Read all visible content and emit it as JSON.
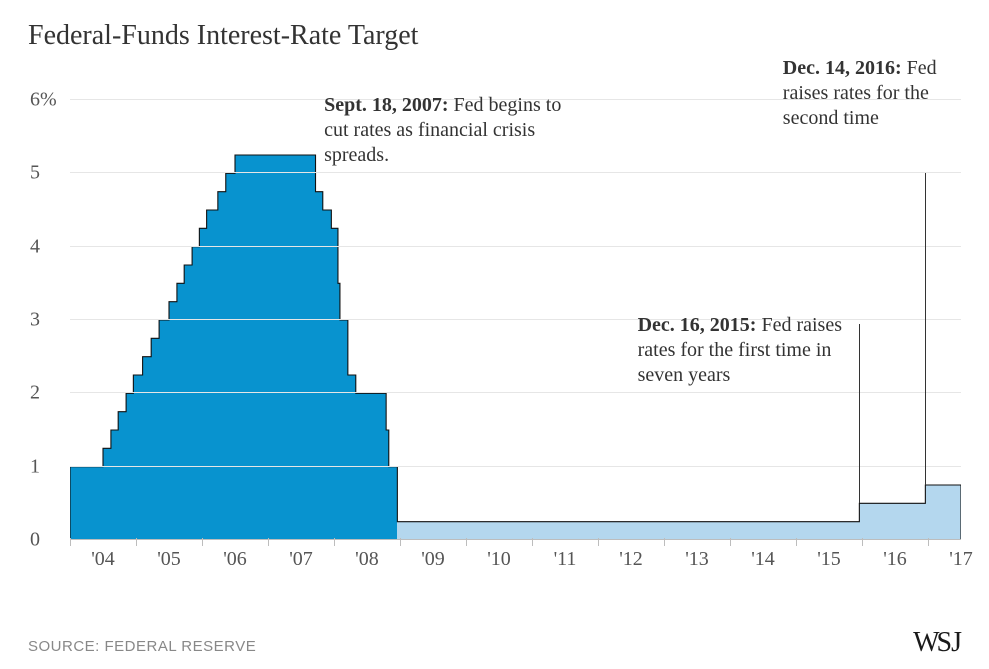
{
  "title": "Federal-Funds Interest-Rate Target",
  "source": "SOURCE: FEDERAL RESERVE",
  "logo": "WSJ",
  "chart": {
    "type": "step-area",
    "ylim": [
      0,
      6
    ],
    "ytick_step": 1,
    "ytick_labels": [
      "0",
      "1",
      "2",
      "3",
      "4",
      "5",
      "6%"
    ],
    "x_start_year": 2004,
    "x_end_year": 2017.5,
    "xtick_labels": [
      "'04",
      "'05",
      "'06",
      "'07",
      "'08",
      "'09",
      "'10",
      "'11",
      "'12",
      "'13",
      "'14",
      "'15",
      "'16",
      "'17"
    ],
    "background_color": "#ffffff",
    "grid_color": "#e6e6e6",
    "axis_color": "#bdbdbd",
    "series_dark": "#0893cf",
    "series_light": "#b4d7ee",
    "outline_color": "#111111",
    "label_fontsize": 20,
    "title_fontsize": 28,
    "segments": [
      {
        "from": 2004.0,
        "to": 2004.5,
        "rate": 1.0,
        "fill": "dark"
      },
      {
        "from": 2004.5,
        "to": 2004.62,
        "rate": 1.25,
        "fill": "dark"
      },
      {
        "from": 2004.62,
        "to": 2004.73,
        "rate": 1.5,
        "fill": "dark"
      },
      {
        "from": 2004.73,
        "to": 2004.85,
        "rate": 1.75,
        "fill": "dark"
      },
      {
        "from": 2004.85,
        "to": 2004.96,
        "rate": 2.0,
        "fill": "dark"
      },
      {
        "from": 2004.96,
        "to": 2005.1,
        "rate": 2.25,
        "fill": "dark"
      },
      {
        "from": 2005.1,
        "to": 2005.23,
        "rate": 2.5,
        "fill": "dark"
      },
      {
        "from": 2005.23,
        "to": 2005.35,
        "rate": 2.75,
        "fill": "dark"
      },
      {
        "from": 2005.35,
        "to": 2005.5,
        "rate": 3.0,
        "fill": "dark"
      },
      {
        "from": 2005.5,
        "to": 2005.62,
        "rate": 3.25,
        "fill": "dark"
      },
      {
        "from": 2005.62,
        "to": 2005.73,
        "rate": 3.5,
        "fill": "dark"
      },
      {
        "from": 2005.73,
        "to": 2005.85,
        "rate": 3.75,
        "fill": "dark"
      },
      {
        "from": 2005.85,
        "to": 2005.96,
        "rate": 4.0,
        "fill": "dark"
      },
      {
        "from": 2005.96,
        "to": 2006.07,
        "rate": 4.25,
        "fill": "dark"
      },
      {
        "from": 2006.07,
        "to": 2006.24,
        "rate": 4.5,
        "fill": "dark"
      },
      {
        "from": 2006.24,
        "to": 2006.36,
        "rate": 4.75,
        "fill": "dark"
      },
      {
        "from": 2006.36,
        "to": 2006.5,
        "rate": 5.0,
        "fill": "dark"
      },
      {
        "from": 2006.5,
        "to": 2007.72,
        "rate": 5.25,
        "fill": "dark"
      },
      {
        "from": 2007.72,
        "to": 2007.83,
        "rate": 4.75,
        "fill": "dark"
      },
      {
        "from": 2007.83,
        "to": 2007.96,
        "rate": 4.5,
        "fill": "dark"
      },
      {
        "from": 2007.96,
        "to": 2008.06,
        "rate": 4.25,
        "fill": "dark"
      },
      {
        "from": 2008.06,
        "to": 2008.09,
        "rate": 3.5,
        "fill": "dark"
      },
      {
        "from": 2008.09,
        "to": 2008.21,
        "rate": 3.0,
        "fill": "dark"
      },
      {
        "from": 2008.21,
        "to": 2008.33,
        "rate": 2.25,
        "fill": "dark"
      },
      {
        "from": 2008.33,
        "to": 2008.79,
        "rate": 2.0,
        "fill": "dark"
      },
      {
        "from": 2008.79,
        "to": 2008.83,
        "rate": 1.5,
        "fill": "dark"
      },
      {
        "from": 2008.83,
        "to": 2008.96,
        "rate": 1.0,
        "fill": "dark"
      },
      {
        "from": 2008.96,
        "to": 2015.96,
        "rate": 0.25,
        "fill": "light"
      },
      {
        "from": 2015.96,
        "to": 2016.96,
        "rate": 0.5,
        "fill": "light"
      },
      {
        "from": 2016.96,
        "to": 2017.5,
        "rate": 0.75,
        "fill": "light"
      }
    ],
    "annotations": [
      {
        "date": "Sept. 18, 2007:",
        "text": "Fed begins to cut rates as financial crisis spreads.",
        "box_left_year": 2007.85,
        "box_top_rate": 6.1,
        "box_width_years": 4.0,
        "line": null
      },
      {
        "date": "Dec. 16, 2015:",
        "text": "Fed raises rates for the first time in seven years",
        "box_left_year": 2012.6,
        "box_top_rate": 3.1,
        "box_width_years": 3.2,
        "line": {
          "x_year": 2015.96,
          "y_top_rate": 2.95,
          "y_bottom_rate": 0.5
        }
      },
      {
        "date": "Dec. 14, 2016:",
        "text": "Fed raises rates for the second time",
        "box_left_year": 2014.8,
        "box_top_rate": 6.6,
        "box_width_years": 2.5,
        "line": {
          "x_year": 2016.96,
          "y_top_rate": 5.0,
          "y_bottom_rate": 0.75
        }
      }
    ]
  }
}
